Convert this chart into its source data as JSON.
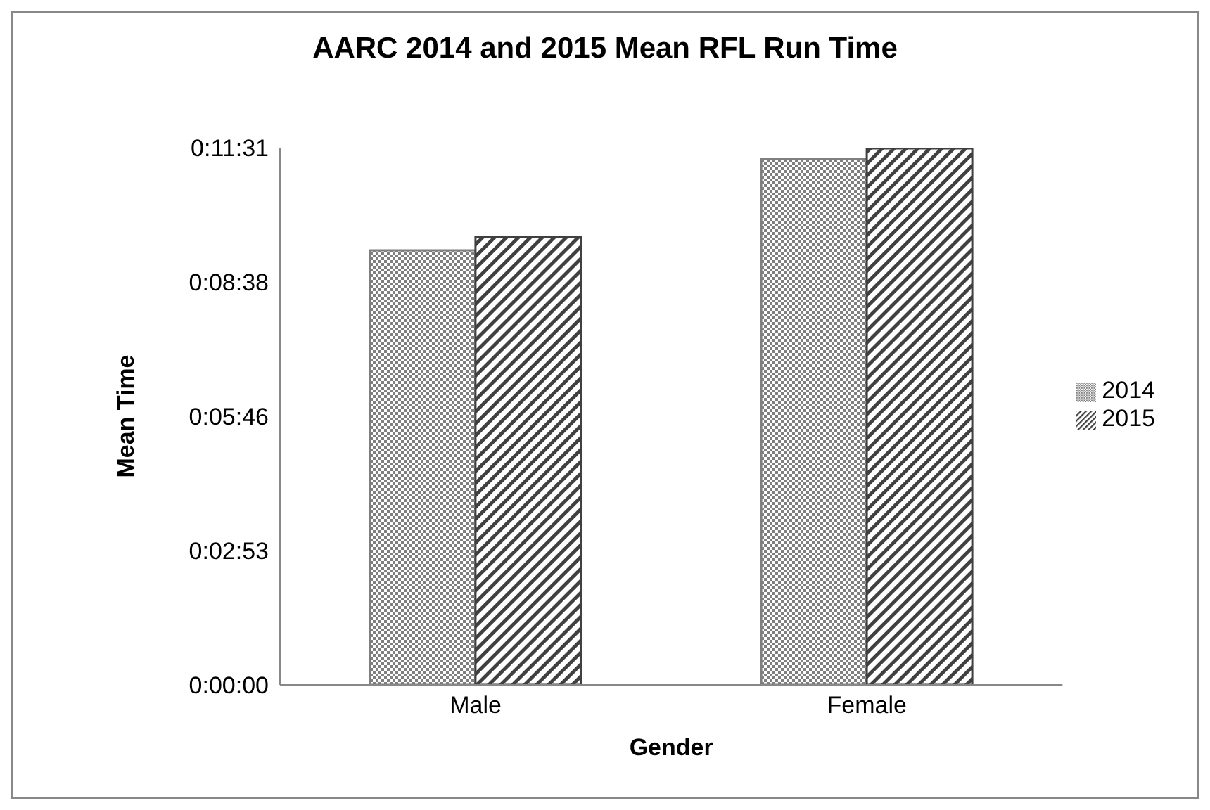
{
  "chart_data": {
    "type": "bar",
    "title": "AARC 2014 and 2015 Mean RFL Run Time",
    "xlabel": "Gender",
    "ylabel": "Mean Time",
    "categories": [
      "Male",
      "Female"
    ],
    "series": [
      {
        "name": "2014",
        "color": "#7f7f7f",
        "values": [
          559,
          677
        ]
      },
      {
        "name": "2015",
        "color": "#404040",
        "values": [
          576,
          690
        ]
      }
    ],
    "ylim": [
      0,
      691
    ],
    "yticks": [
      {
        "value": 0,
        "label": "0:00:00"
      },
      {
        "value": 172.75,
        "label": "0:02:53"
      },
      {
        "value": 345.5,
        "label": "0:05:46"
      },
      {
        "value": 518.25,
        "label": "0:08:38"
      },
      {
        "value": 691,
        "label": "0:11:31"
      }
    ],
    "grid": false,
    "legend": "right"
  }
}
